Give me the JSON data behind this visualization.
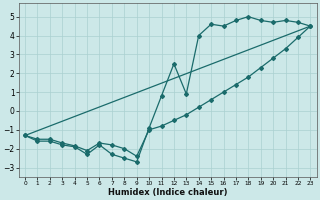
{
  "xlabel": "Humidex (Indice chaleur)",
  "bg_color": "#cce8e8",
  "grid_color": "#aad0d0",
  "line_color": "#1a6b6b",
  "xlim": [
    -0.5,
    23.5
  ],
  "ylim": [
    -3.5,
    5.7
  ],
  "xticks": [
    0,
    1,
    2,
    3,
    4,
    5,
    6,
    7,
    8,
    9,
    10,
    11,
    12,
    13,
    14,
    15,
    16,
    17,
    18,
    19,
    20,
    21,
    22,
    23
  ],
  "yticks": [
    -3,
    -2,
    -1,
    0,
    1,
    2,
    3,
    4,
    5
  ],
  "series1_x": [
    0,
    1,
    2,
    3,
    4,
    5,
    6,
    7,
    8,
    9,
    10,
    11,
    12,
    13,
    14,
    15,
    16,
    17,
    18,
    19,
    20,
    21,
    22,
    23
  ],
  "series1_y": [
    -1.3,
    -1.6,
    -1.6,
    -1.8,
    -1.9,
    -2.3,
    -1.8,
    -2.3,
    -2.5,
    -2.7,
    -0.9,
    0.8,
    2.5,
    0.9,
    4.0,
    4.6,
    4.5,
    4.8,
    5.0,
    4.8,
    4.7,
    4.8,
    4.7,
    4.5
  ],
  "series2_x": [
    0,
    1,
    2,
    3,
    4,
    5,
    6,
    7,
    8,
    9,
    10,
    11,
    12,
    13,
    14,
    15,
    16,
    17,
    18,
    19,
    20,
    21,
    22,
    23
  ],
  "series2_y": [
    -1.3,
    -1.5,
    -1.5,
    -1.7,
    -1.85,
    -2.1,
    -1.7,
    -1.8,
    -2.0,
    -2.4,
    -1.0,
    -0.8,
    -0.5,
    -0.2,
    0.2,
    0.6,
    1.0,
    1.4,
    1.8,
    2.3,
    2.8,
    3.3,
    3.9,
    4.5
  ],
  "series3_x": [
    0,
    23
  ],
  "series3_y": [
    -1.3,
    4.5
  ]
}
